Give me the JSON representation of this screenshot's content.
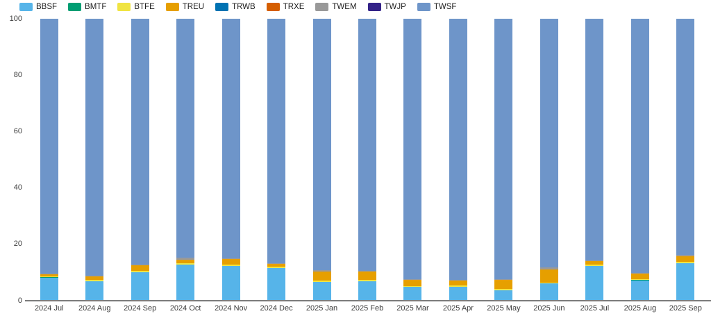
{
  "chart_data": {
    "type": "bar",
    "variant": "stacked-percent",
    "title": "",
    "xlabel": "",
    "ylabel": "",
    "ylim": [
      0,
      100
    ],
    "yticks": [
      0,
      20,
      40,
      60,
      80,
      100
    ],
    "grid": false,
    "legend_position": "top",
    "categories": [
      "2024 Jul",
      "2024 Aug",
      "2024 Sep",
      "2024 Oct",
      "2024 Nov",
      "2024 Dec",
      "2025 Jan",
      "2025 Feb",
      "2025 Mar",
      "2025 Apr",
      "2025 May",
      "2025 Jun",
      "2025 Jul",
      "2025 Aug",
      "2025 Sep"
    ],
    "series": [
      {
        "name": "BBSF",
        "color": "#56b4e9",
        "values": [
          8.2,
          6.9,
          10.1,
          12.8,
          12.3,
          11.5,
          6.6,
          6.9,
          4.9,
          4.9,
          3.7,
          6.1,
          12.2,
          7.2,
          13.2
        ]
      },
      {
        "name": "BMTF",
        "color": "#009e73",
        "values": [
          0.1,
          0.1,
          0.1,
          0.1,
          0.1,
          0.1,
          0.1,
          0.1,
          0.1,
          0.1,
          0.1,
          0.1,
          0.1,
          0.1,
          0.1
        ]
      },
      {
        "name": "BTFE",
        "color": "#f0e442",
        "values": [
          0.3,
          0.4,
          0.5,
          0.4,
          0.5,
          0.4,
          0.4,
          0.4,
          0.3,
          0.4,
          0.3,
          0.3,
          0.4,
          0.3,
          0.5
        ]
      },
      {
        "name": "TREU",
        "color": "#e69f00",
        "values": [
          0.7,
          1.2,
          1.8,
          1.3,
          1.8,
          1.1,
          3.3,
          2.9,
          2.0,
          1.8,
          3.2,
          4.6,
          1.3,
          2.0,
          1.9
        ]
      },
      {
        "name": "TRWB",
        "color": "#0072b2",
        "values": [
          0,
          0,
          0,
          0,
          0,
          0,
          0,
          0,
          0,
          0,
          0,
          0,
          0,
          0,
          0
        ]
      },
      {
        "name": "TRXE",
        "color": "#d55e00",
        "values": [
          0,
          0,
          0,
          0,
          0,
          0,
          0,
          0,
          0,
          0,
          0,
          0,
          0,
          0,
          0
        ]
      },
      {
        "name": "TWEM",
        "color": "#999999",
        "values": [
          0.4,
          0.2,
          0.3,
          0.6,
          0.3,
          0.3,
          0.5,
          0.3,
          0.4,
          0.3,
          0.4,
          0.8,
          0.2,
          0.3,
          0.6
        ]
      },
      {
        "name": "TWJP",
        "color": "#332288",
        "values": [
          0,
          0,
          0,
          0,
          0,
          0,
          0,
          0,
          0,
          0,
          0,
          0,
          0,
          0,
          0
        ]
      },
      {
        "name": "TWSF",
        "color": "#6e95c9",
        "values": [
          90.3,
          91.2,
          87.2,
          84.8,
          85.0,
          86.6,
          89.1,
          89.4,
          92.3,
          92.5,
          92.3,
          88.1,
          85.8,
          90.1,
          83.7
        ]
      }
    ]
  }
}
